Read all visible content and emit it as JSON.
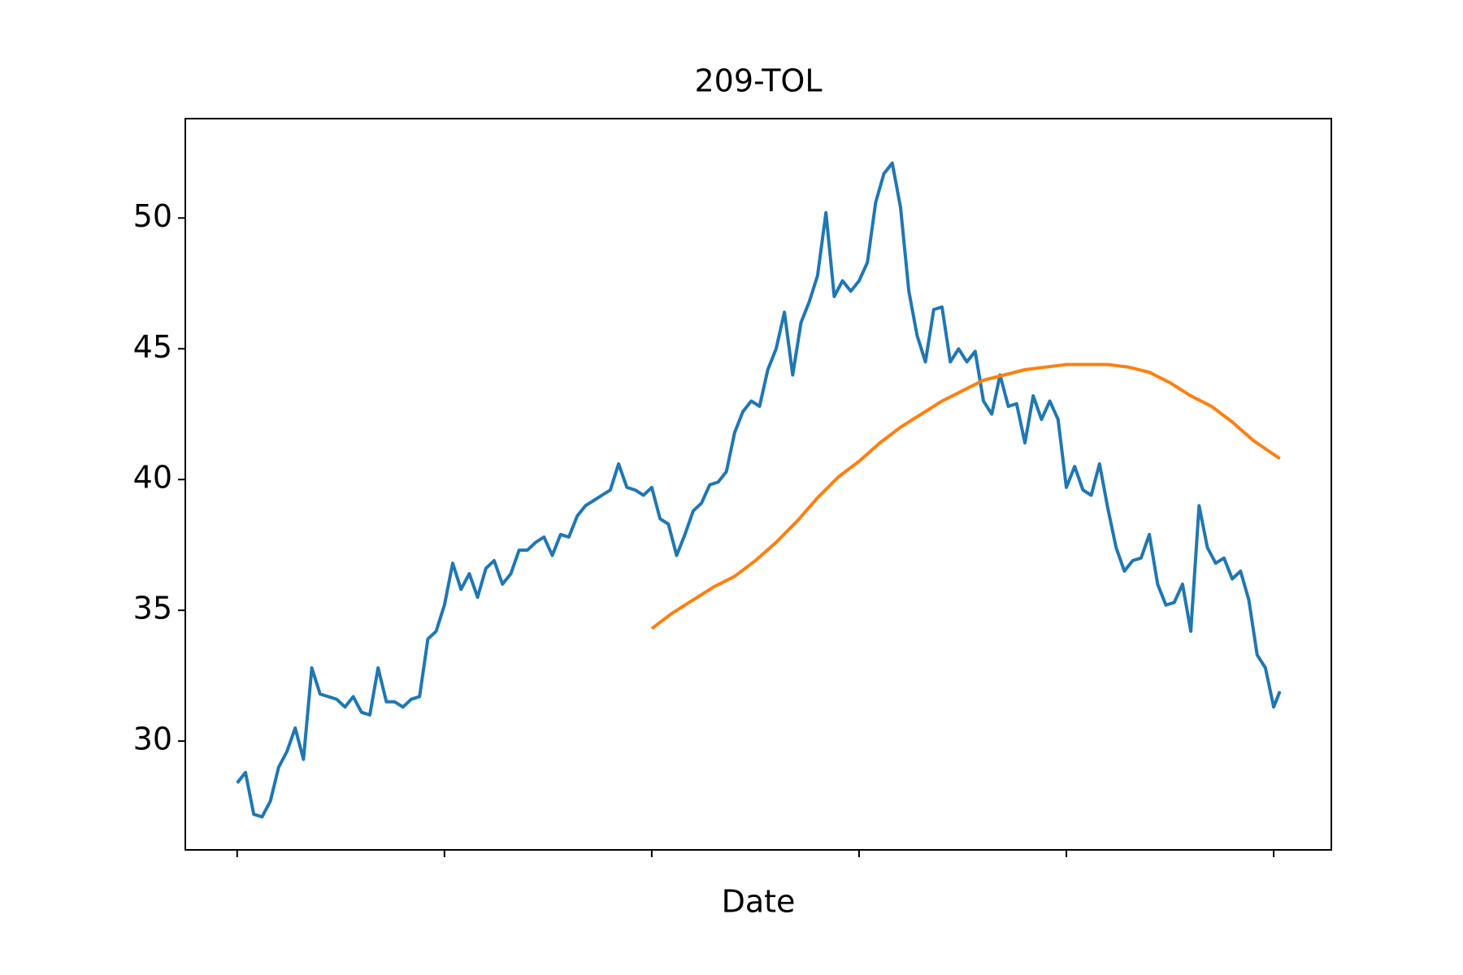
{
  "chart_data": {
    "type": "line",
    "title": "209-TOL",
    "xlabel": "Date",
    "xlim": [
      -25,
      527.8
    ],
    "ylim": [
      25.84,
      53.8
    ],
    "xticks": [
      0,
      100,
      200,
      300,
      400,
      500
    ],
    "yticks": [
      30,
      35,
      40,
      45,
      50
    ],
    "series": [
      {
        "color": "#1f77b4",
        "x": [
          0,
          4,
          8,
          12,
          16,
          20,
          24,
          28,
          32,
          36,
          40,
          44,
          48,
          52,
          56,
          60,
          64,
          68,
          72,
          76,
          80,
          84,
          88,
          92,
          96,
          100,
          104,
          108,
          112,
          116,
          120,
          124,
          128,
          132,
          136,
          140,
          144,
          148,
          152,
          156,
          160,
          164,
          168,
          172,
          176,
          180,
          184,
          188,
          192,
          196,
          200,
          204,
          208,
          212,
          216,
          220,
          224,
          228,
          232,
          236,
          240,
          244,
          248,
          252,
          256,
          260,
          264,
          268,
          272,
          276,
          280,
          284,
          288,
          292,
          296,
          300,
          304,
          308,
          312,
          316,
          320,
          324,
          328,
          332,
          336,
          340,
          344,
          348,
          352,
          356,
          360,
          364,
          368,
          372,
          376,
          380,
          384,
          388,
          392,
          396,
          400,
          404,
          408,
          412,
          416,
          420,
          424,
          428,
          432,
          436,
          440,
          444,
          448,
          452,
          456,
          460,
          464,
          468,
          472,
          476,
          480,
          484,
          488,
          492,
          496,
          500,
          503
        ],
        "values": [
          28.4,
          28.8,
          27.2,
          27.1,
          27.7,
          29.0,
          29.6,
          30.5,
          29.3,
          32.8,
          31.8,
          31.7,
          31.6,
          31.3,
          31.7,
          31.1,
          31.0,
          32.8,
          31.5,
          31.5,
          31.3,
          31.6,
          31.7,
          33.9,
          34.2,
          35.2,
          36.8,
          35.8,
          36.4,
          35.5,
          36.6,
          36.9,
          36.0,
          36.4,
          37.3,
          37.3,
          37.6,
          37.8,
          37.1,
          37.9,
          37.8,
          38.6,
          39.0,
          39.2,
          39.4,
          39.6,
          40.6,
          39.7,
          39.6,
          39.4,
          39.7,
          38.5,
          38.3,
          37.1,
          37.9,
          38.8,
          39.1,
          39.8,
          39.9,
          40.3,
          41.8,
          42.6,
          43.0,
          42.8,
          44.2,
          45.0,
          46.4,
          44.0,
          46.0,
          46.8,
          47.8,
          50.2,
          47.0,
          47.6,
          47.2,
          47.6,
          48.3,
          50.6,
          51.7,
          52.1,
          50.4,
          47.2,
          45.5,
          44.5,
          46.5,
          46.6,
          44.5,
          45.0,
          44.5,
          44.9,
          43.0,
          42.5,
          44.0,
          42.8,
          42.9,
          41.4,
          43.2,
          42.3,
          43.0,
          42.3,
          39.7,
          40.5,
          39.6,
          39.4,
          40.6,
          38.9,
          37.4,
          36.5,
          36.9,
          37.0,
          37.9,
          36.0,
          35.2,
          35.3,
          36.0,
          34.2,
          39.0,
          37.4,
          36.8,
          37.0,
          36.2,
          36.5,
          35.4,
          33.3,
          32.8,
          31.3,
          31.9
        ]
      },
      {
        "color": "#ff7f0e",
        "x": [
          200,
          210,
          220,
          230,
          240,
          250,
          260,
          270,
          280,
          290,
          300,
          310,
          320,
          330,
          340,
          350,
          360,
          370,
          380,
          390,
          400,
          410,
          420,
          430,
          440,
          450,
          460,
          470,
          480,
          490,
          503
        ],
        "values": [
          34.3,
          34.9,
          35.4,
          35.9,
          36.3,
          36.9,
          37.6,
          38.4,
          39.3,
          40.1,
          40.7,
          41.4,
          42.0,
          42.5,
          43.0,
          43.4,
          43.8,
          44.0,
          44.2,
          44.3,
          44.4,
          44.4,
          44.4,
          44.3,
          44.1,
          43.7,
          43.2,
          42.8,
          42.2,
          41.5,
          40.8
        ]
      }
    ]
  }
}
